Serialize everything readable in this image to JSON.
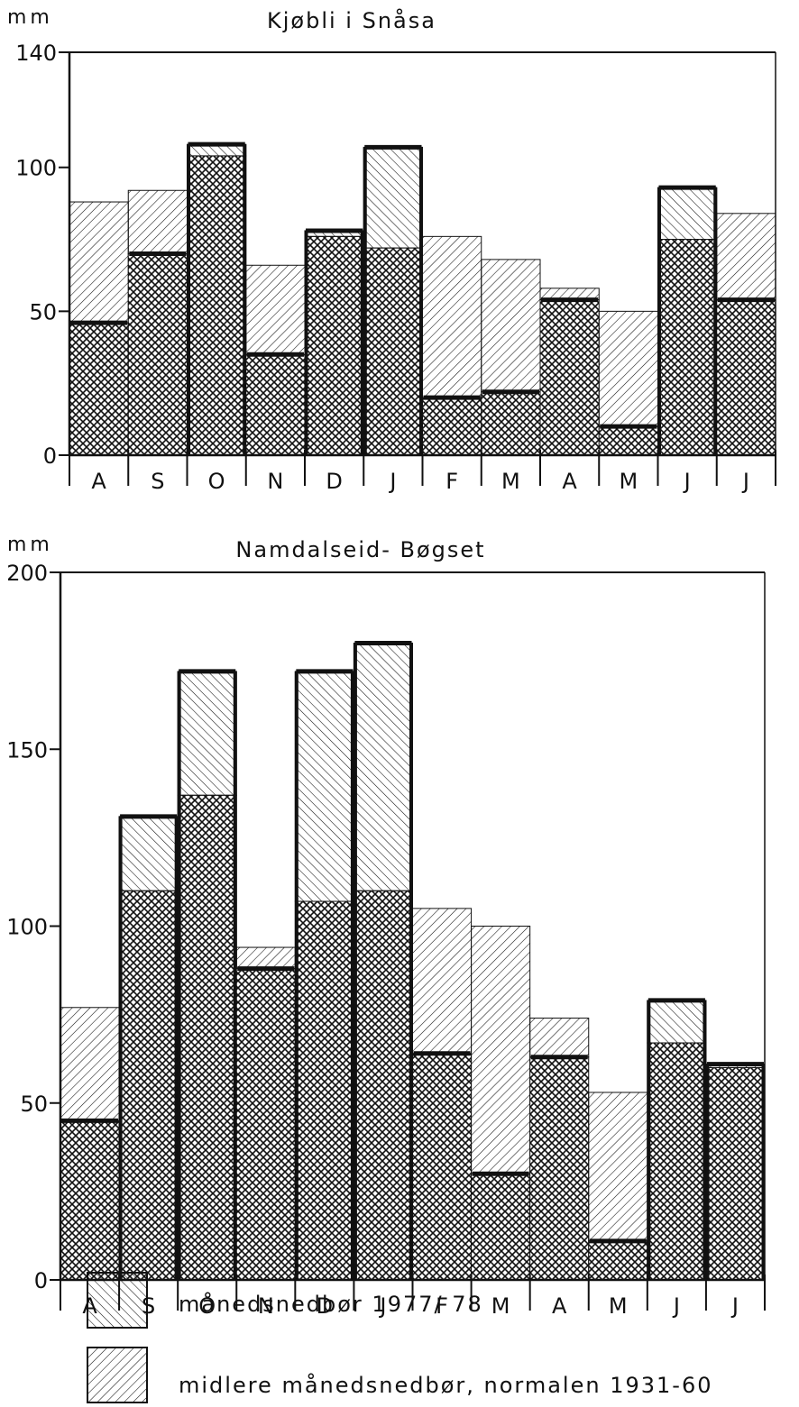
{
  "chart_data": [
    {
      "type": "bar",
      "title": "Kjøbli i Snåsa",
      "ylabel": "mm",
      "ylim": [
        0,
        140
      ],
      "yticks": [
        0,
        50,
        100,
        140
      ],
      "categories": [
        "A",
        "S",
        "O",
        "N",
        "D",
        "J",
        "F",
        "M",
        "A",
        "M",
        "J",
        "J"
      ],
      "series": [
        {
          "name": "månedsnedbør 1977/ 78",
          "values": [
            46,
            70,
            108,
            35,
            78,
            107,
            20,
            22,
            54,
            10,
            93,
            54
          ]
        },
        {
          "name": "midlere månedsnedbør, normalen 1931-60",
          "values": [
            88,
            92,
            104,
            66,
            76,
            72,
            76,
            68,
            58,
            50,
            75,
            84
          ]
        }
      ],
      "grid": false,
      "legend": "bottom"
    },
    {
      "type": "bar",
      "title": "Namdalseid- Bøgset",
      "ylabel": "mm",
      "ylim": [
        0,
        200
      ],
      "yticks": [
        0,
        50,
        100,
        150,
        200
      ],
      "categories": [
        "A",
        "S",
        "O",
        "N",
        "D",
        "J",
        "F",
        "M",
        "A",
        "M",
        "J",
        "J"
      ],
      "series": [
        {
          "name": "månedsnedbør 1977/ 78",
          "values": [
            45,
            131,
            172,
            88,
            172,
            180,
            64,
            30,
            63,
            11,
            79,
            61
          ]
        },
        {
          "name": "midlere månedsnedbør, normalen 1931-60",
          "values": [
            77,
            110,
            137,
            94,
            107,
            110,
            105,
            100,
            74,
            53,
            67,
            60
          ]
        }
      ],
      "grid": false,
      "legend": "bottom"
    }
  ],
  "legend": {
    "items": [
      {
        "label": "månedsnedbør 1977/ 78",
        "pattern": "back-hatch"
      },
      {
        "label": "midlere månedsnedbør, normalen 1931-60",
        "pattern": "forward-hatch"
      }
    ]
  }
}
